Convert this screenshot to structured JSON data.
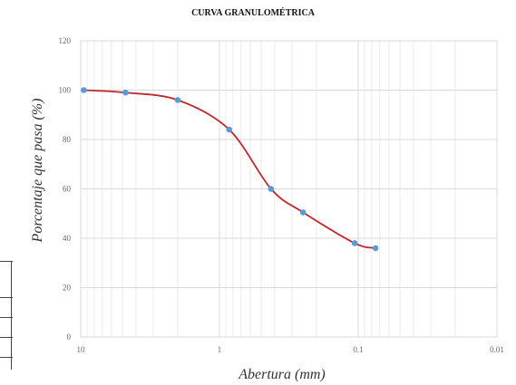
{
  "chart_data": {
    "type": "line",
    "title": "CURVA GRANULOMÉTRICA",
    "xlabel": "Abertura (mm)",
    "ylabel": "Porcentaje que pasa (%)",
    "x_scale": "log",
    "x_reversed": true,
    "xlim": [
      10,
      0.01
    ],
    "ylim": [
      0,
      120
    ],
    "x_ticks": [
      10,
      1,
      0.1,
      0.01
    ],
    "x_tick_labels": [
      "10",
      "1",
      "0.1",
      "0.01"
    ],
    "y_ticks": [
      0,
      20,
      40,
      60,
      80,
      100,
      120
    ],
    "y_tick_labels": [
      "0",
      "20",
      "40",
      "60",
      "80",
      "100",
      "120"
    ],
    "grid": true,
    "line_color": "#c0282d",
    "marker_color": "#5b9bd5",
    "series": [
      {
        "x": [
          9.5,
          4.75,
          2.0,
          0.85,
          0.425,
          0.25,
          0.106,
          0.075
        ],
        "y": [
          100,
          99,
          96,
          84,
          60,
          50.5,
          38,
          36
        ]
      }
    ]
  }
}
